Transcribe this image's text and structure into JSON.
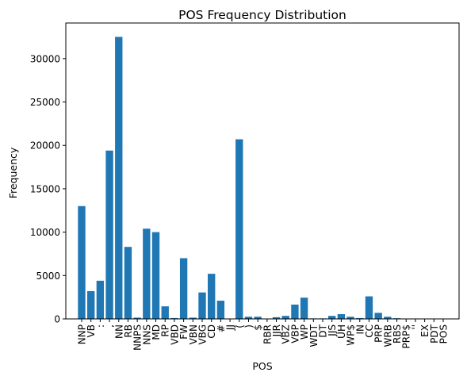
{
  "chart_data": {
    "type": "bar",
    "title": "POS Frequency Distribution",
    "xlabel": "POS",
    "ylabel": "Frequency",
    "ylim": [
      0,
      34100
    ],
    "yticks": [
      0,
      5000,
      10000,
      15000,
      20000,
      25000,
      30000
    ],
    "grid": false,
    "bar_color": "#1f77b4",
    "categories": [
      "NNP",
      "VB",
      ":",
      ",",
      "NN",
      "RB",
      "NNPS",
      "NNS",
      "MD",
      "RP",
      "VBD",
      "FW",
      "VBN",
      "VBG",
      "CD",
      "#",
      "JJ",
      "(",
      ")",
      "$",
      "RBR",
      "JJR",
      "VBZ",
      "VBP",
      "WP",
      "WDT",
      "DT",
      "JJS",
      "UH",
      "WP$",
      "IN",
      "CC",
      "PRP",
      "WRB",
      "RBS",
      "PRP$",
      "''",
      "EX",
      "PDT",
      "POS"
    ],
    "values": [
      13000,
      3200,
      4400,
      19400,
      32500,
      8300,
      150,
      10400,
      10000,
      1450,
      100,
      7000,
      150,
      3050,
      5200,
      2100,
      20,
      20700,
      250,
      250,
      30,
      200,
      350,
      1650,
      2450,
      60,
      60,
      350,
      550,
      250,
      100,
      2600,
      700,
      250,
      80,
      20,
      20,
      20,
      20,
      20
    ]
  }
}
